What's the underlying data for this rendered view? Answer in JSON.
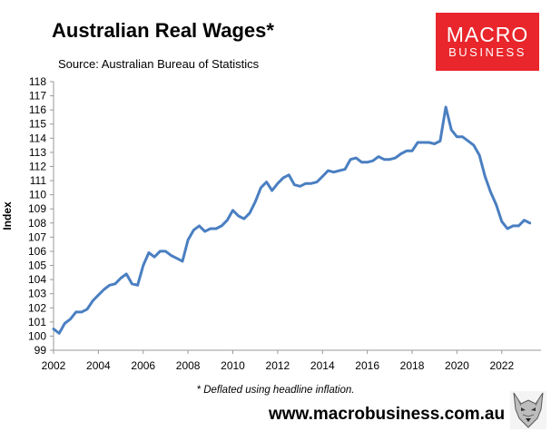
{
  "header": {
    "title": "Australian Real Wages*",
    "subtitle": "Source: Australian Bureau of Statistics"
  },
  "logo": {
    "top_text": "MACRO",
    "bottom_text": "BUSINESS",
    "background_color": "#e8262b"
  },
  "footer": {
    "note": "* Deflated using headline inflation.",
    "website": "www.macrobusiness.com.au",
    "mascot_icon": "wolf-icon"
  },
  "chart_data": {
    "type": "line",
    "title": "Australian Real Wages*",
    "subtitle": "Source: Australian Bureau of Statistics",
    "xlabel": "",
    "ylabel": "Index",
    "xlim": [
      2002,
      2023.75
    ],
    "ylim": [
      99,
      118
    ],
    "x_ticks": [
      2002,
      2004,
      2006,
      2008,
      2010,
      2012,
      2014,
      2016,
      2018,
      2020,
      2022
    ],
    "y_ticks": [
      99,
      100,
      101,
      102,
      103,
      104,
      105,
      106,
      107,
      108,
      109,
      110,
      111,
      112,
      113,
      114,
      115,
      116,
      117,
      118
    ],
    "grid": false,
    "legend": "none",
    "line_color": "#4a7fc1",
    "series": [
      {
        "name": "",
        "x": [
          2002.0,
          2002.25,
          2002.5,
          2002.75,
          2003.0,
          2003.25,
          2003.5,
          2003.75,
          2004.0,
          2004.25,
          2004.5,
          2004.75,
          2005.0,
          2005.25,
          2005.5,
          2005.75,
          2006.0,
          2006.25,
          2006.5,
          2006.75,
          2007.0,
          2007.25,
          2007.5,
          2007.75,
          2008.0,
          2008.25,
          2008.5,
          2008.75,
          2009.0,
          2009.25,
          2009.5,
          2009.75,
          2010.0,
          2010.25,
          2010.5,
          2010.75,
          2011.0,
          2011.25,
          2011.5,
          2011.75,
          2012.0,
          2012.25,
          2012.5,
          2012.75,
          2013.0,
          2013.25,
          2013.5,
          2013.75,
          2014.0,
          2014.25,
          2014.5,
          2014.75,
          2015.0,
          2015.25,
          2015.5,
          2015.75,
          2016.0,
          2016.25,
          2016.5,
          2016.75,
          2017.0,
          2017.25,
          2017.5,
          2017.75,
          2018.0,
          2018.25,
          2018.5,
          2018.75,
          2019.0,
          2019.25,
          2019.5,
          2019.75,
          2020.0,
          2020.25,
          2020.5,
          2020.75,
          2021.0,
          2021.25,
          2021.5,
          2021.75,
          2022.0,
          2022.25,
          2022.5,
          2022.75,
          2023.0,
          2023.25
        ],
        "values": [
          100.5,
          100.2,
          100.9,
          101.2,
          101.7,
          101.7,
          101.9,
          102.5,
          102.9,
          103.3,
          103.6,
          103.7,
          104.1,
          104.4,
          103.7,
          103.6,
          105.0,
          105.9,
          105.6,
          106.0,
          106.0,
          105.7,
          105.5,
          105.3,
          106.8,
          107.5,
          107.8,
          107.4,
          107.6,
          107.6,
          107.8,
          108.2,
          108.9,
          108.5,
          108.3,
          108.7,
          109.5,
          110.5,
          110.9,
          110.3,
          110.8,
          111.2,
          111.4,
          110.7,
          110.6,
          110.8,
          110.8,
          110.9,
          111.3,
          111.7,
          111.6,
          111.7,
          111.8,
          112.5,
          112.6,
          112.3,
          112.3,
          112.4,
          112.7,
          112.5,
          112.5,
          112.6,
          112.9,
          113.1,
          113.1,
          113.7,
          113.7,
          113.7,
          113.6,
          113.8,
          116.2,
          114.6,
          114.1,
          114.1,
          113.8,
          113.5,
          112.8,
          111.3,
          110.2,
          109.3,
          108.1,
          107.6,
          107.8,
          107.8,
          108.2,
          108.0
        ]
      }
    ]
  }
}
